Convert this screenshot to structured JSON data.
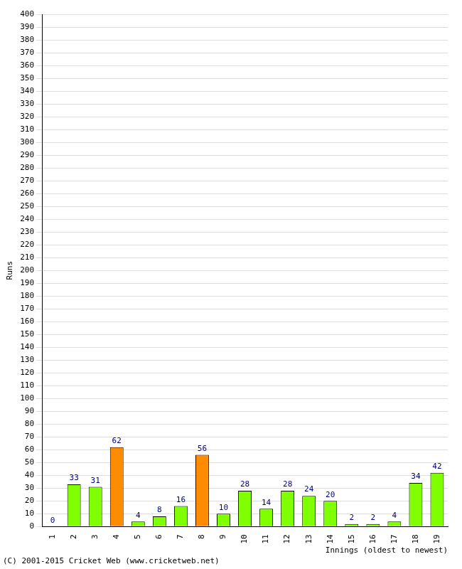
{
  "chart_data": {
    "type": "bar",
    "categories": [
      "1",
      "2",
      "3",
      "4",
      "5",
      "6",
      "7",
      "8",
      "9",
      "10",
      "11",
      "12",
      "13",
      "14",
      "15",
      "16",
      "17",
      "18",
      "19"
    ],
    "values": [
      0,
      33,
      31,
      62,
      4,
      8,
      16,
      56,
      10,
      28,
      14,
      28,
      24,
      20,
      2,
      2,
      4,
      34,
      42
    ],
    "colors": [
      "#80ff00",
      "#80ff00",
      "#80ff00",
      "#ff8c00",
      "#80ff00",
      "#80ff00",
      "#80ff00",
      "#ff8c00",
      "#80ff00",
      "#80ff00",
      "#80ff00",
      "#80ff00",
      "#80ff00",
      "#80ff00",
      "#80ff00",
      "#80ff00",
      "#80ff00",
      "#80ff00",
      "#80ff00"
    ],
    "x_label": "Innings (oldest to newest)",
    "y_label": "Runs",
    "annotations": [
      "(C) 2001-2015 Cricket Web (www.cricketweb.net)"
    ],
    "ylim": [
      0,
      400
    ],
    "yticks": [
      0,
      10,
      20,
      30,
      40,
      50,
      60,
      70,
      80,
      90,
      100,
      110,
      120,
      130,
      140,
      150,
      160,
      170,
      180,
      190,
      200,
      210,
      220,
      230,
      240,
      250,
      260,
      270,
      280,
      290,
      300,
      310,
      320,
      330,
      340,
      350,
      360,
      370,
      380,
      390,
      400
    ],
    "grid": true,
    "data_labels": true
  }
}
